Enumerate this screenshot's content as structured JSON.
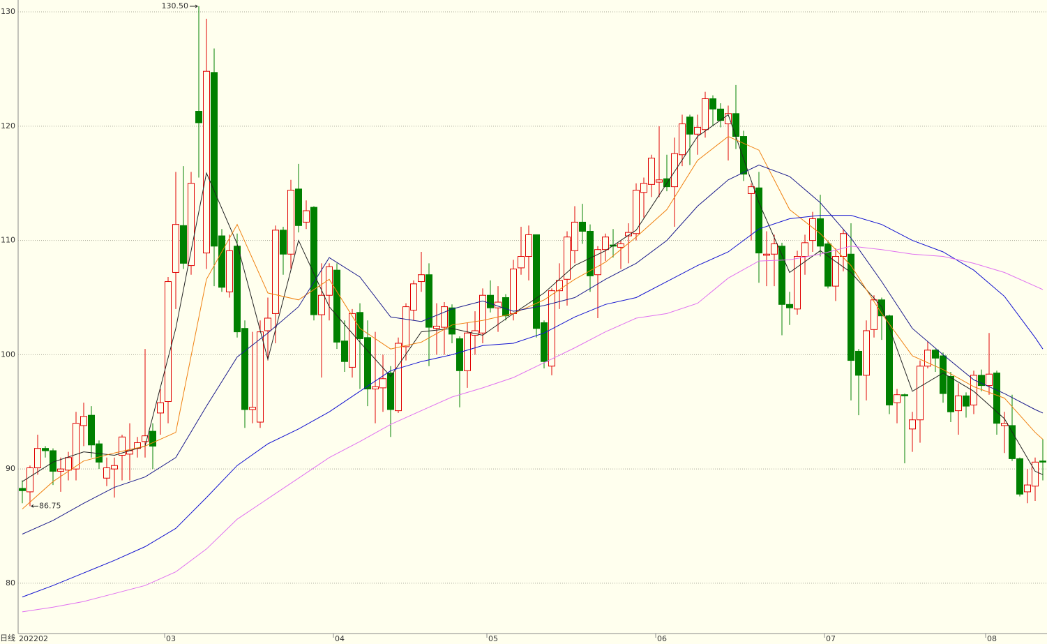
{
  "chart_data": {
    "type": "candlestick",
    "period_label": "日线",
    "categories": [
      "202202",
      null,
      null,
      null,
      null,
      null,
      null,
      null,
      null,
      null,
      null,
      null,
      null,
      null,
      null,
      null,
      null,
      null,
      null,
      "03",
      null,
      null,
      null,
      null,
      null,
      null,
      null,
      null,
      null,
      null,
      null,
      null,
      null,
      null,
      null,
      null,
      null,
      null,
      null,
      null,
      null,
      "04",
      null,
      null,
      null,
      null,
      null,
      null,
      null,
      null,
      null,
      null,
      null,
      null,
      null,
      null,
      null,
      null,
      null,
      null,
      null,
      "05",
      null,
      null,
      null,
      null,
      null,
      null,
      null,
      null,
      null,
      null,
      null,
      null,
      null,
      null,
      null,
      null,
      null,
      null,
      null,
      null,
      null,
      "06",
      null,
      null,
      null,
      null,
      null,
      null,
      null,
      null,
      null,
      null,
      null,
      null,
      null,
      null,
      null,
      null,
      null,
      null,
      null,
      null,
      null,
      "07",
      null,
      null,
      null,
      null,
      null,
      null,
      null,
      null,
      null,
      null,
      null,
      null,
      null,
      null,
      null,
      null,
      null,
      null,
      null,
      null,
      "08",
      null,
      null,
      null,
      null,
      null,
      null,
      null
    ],
    "open": [
      88.3,
      88.0,
      90.1,
      91.8,
      91.6,
      89.8,
      89.9,
      90.0,
      93.8,
      94.7,
      92.2,
      89.2,
      90.0,
      91.2,
      91.3,
      91.8,
      92.4,
      93.3,
      94.9,
      95.9,
      107.2,
      111.3,
      107.8,
      121.3,
      108.9,
      124.7,
      110.4,
      105.5,
      109.5,
      102.3,
      95.2,
      94.1,
      102.1,
      103.6,
      110.9,
      108.8,
      114.5,
      111.6,
      112.9,
      103.5,
      105.2,
      107.4,
      101.2,
      98.9,
      103.7,
      101.5,
      97.0,
      97.1,
      98.4,
      95.1,
      100.7,
      103.9,
      106.4,
      107.0,
      102.3,
      102.4,
      104.1,
      101.4,
      98.6,
      101.7,
      101.9,
      105.2,
      104.1,
      105.0,
      103.6,
      107.6,
      108.6,
      110.5,
      102.8,
      99.0,
      105.6,
      106.6,
      109.1,
      111.6,
      110.8,
      107.0,
      109.2,
      109.6,
      109.4,
      110.4,
      110.6,
      114.2,
      114.9,
      115.1,
      115.4,
      114.7,
      117.5,
      120.8,
      119.3,
      119.7,
      122.4,
      121.5,
      120.2,
      121.1,
      119.1,
      114.1,
      114.6,
      108.7,
      108.8,
      109.5,
      104.4,
      104.0,
      108.6,
      110.0,
      111.9,
      109.7,
      106.0,
      108.6,
      108.8,
      100.3,
      98.2,
      102.2,
      104.8,
      103.4,
      95.8,
      96.5,
      93.5,
      94.3,
      99.0,
      100.4,
      99.9,
      98.1,
      95.1,
      96.4,
      95.6,
      98.2,
      97.3,
      98.4,
      93.8,
      93.8,
      90.9,
      88.0,
      88.5,
      90.7
    ],
    "high": [
      89.0,
      90.3,
      93.0,
      92.0,
      91.8,
      91.0,
      91.5,
      95.0,
      95.8,
      95.5,
      92.5,
      91.0,
      91.0,
      93.0,
      94.0,
      92.8,
      100.5,
      94.0,
      97.0,
      106.8,
      116.0,
      116.5,
      116.0,
      130.5,
      129.4,
      126.8,
      111.0,
      110.5,
      110.6,
      103.0,
      102.0,
      103.0,
      105.0,
      111.3,
      111.2,
      115.3,
      116.7,
      113.5,
      113.0,
      108.0,
      108.0,
      108.0,
      103.0,
      104.0,
      104.5,
      103.0,
      102.0,
      100.0,
      99.0,
      101.5,
      104.5,
      106.5,
      109.0,
      108.0,
      104.5,
      104.6,
      104.4,
      101.6,
      102.8,
      103.8,
      105.8,
      106.5,
      106.0,
      105.3,
      108.3,
      111.2,
      111.3,
      110.5,
      103.0,
      105.8,
      108.0,
      110.8,
      113.0,
      113.2,
      111.4,
      109.5,
      110.6,
      111.0,
      110.0,
      111.5,
      115.0,
      115.5,
      117.5,
      120.0,
      117.5,
      119.0,
      121.0,
      121.0,
      121.0,
      123.0,
      122.7,
      122.0,
      121.8,
      123.6,
      119.6,
      115.0,
      116.0,
      110.8,
      110.5,
      109.8,
      105.5,
      109.1,
      110.5,
      112.5,
      114.0,
      110.0,
      109.3,
      111.0,
      111.5,
      100.5,
      103.0,
      105.2,
      105.0,
      103.5,
      97.0,
      96.6,
      95.0,
      99.5,
      101.2,
      100.5,
      100.2,
      98.5,
      97.5,
      96.7,
      98.6,
      98.7,
      101.9,
      98.6,
      95.0,
      96.5,
      91.0,
      90.0,
      91.0,
      92.6
    ],
    "low": [
      87.0,
      86.75,
      89.5,
      91.0,
      88.6,
      88.0,
      89.0,
      89.0,
      92.0,
      91.0,
      90.0,
      88.5,
      87.5,
      89.0,
      89.0,
      91.0,
      91.0,
      90.0,
      93.0,
      94.0,
      104.0,
      107.5,
      107.0,
      115.5,
      107.5,
      106.0,
      105.5,
      105.0,
      101.5,
      93.6,
      94.0,
      93.6,
      99.5,
      101.0,
      107.0,
      107.5,
      110.7,
      111.0,
      103.0,
      98.0,
      103.0,
      100.5,
      98.5,
      98.0,
      97.0,
      95.5,
      94.0,
      95.0,
      92.8,
      94.9,
      99.5,
      103.0,
      105.5,
      99.0,
      100.0,
      100.0,
      101.0,
      95.4,
      97.1,
      100.0,
      101.0,
      103.7,
      102.0,
      103.0,
      103.0,
      107.0,
      106.5,
      101.5,
      98.8,
      98.2,
      104.0,
      104.3,
      108.0,
      109.7,
      105.5,
      103.2,
      108.2,
      108.5,
      107.5,
      108.0,
      110.0,
      112.0,
      113.8,
      113.8,
      114.3,
      111.2,
      116.5,
      116.6,
      117.5,
      119.0,
      120.0,
      119.9,
      117.0,
      118.0,
      115.2,
      110.0,
      106.3,
      106.0,
      106.0,
      101.7,
      102.6,
      103.5,
      107.0,
      109.0,
      108.6,
      105.8,
      104.7,
      107.3,
      96.0,
      94.7,
      96.0,
      101.5,
      101.3,
      94.8,
      94.0,
      90.5,
      91.5,
      92.3,
      98.8,
      98.5,
      95.8,
      94.1,
      93.0,
      94.5,
      94.8,
      96.8,
      96.5,
      93.0,
      91.4,
      90.7,
      87.6,
      87.0,
      87.2,
      89.0
    ],
    "close": [
      88.1,
      90.1,
      91.8,
      91.6,
      89.8,
      90.0,
      91.0,
      94.0,
      94.6,
      92.1,
      90.6,
      90.1,
      90.3,
      92.8,
      91.6,
      92.3,
      92.9,
      92.0,
      95.8,
      106.4,
      111.4,
      108.0,
      115.0,
      120.3,
      124.8,
      109.5,
      105.9,
      109.1,
      102.0,
      95.2,
      95.4,
      102.0,
      103.2,
      110.9,
      108.8,
      114.4,
      111.3,
      112.6,
      103.5,
      105.2,
      107.7,
      101.1,
      99.4,
      103.6,
      101.4,
      97.0,
      97.2,
      97.9,
      95.2,
      101.0,
      104.2,
      106.2,
      107.0,
      102.4,
      102.5,
      104.2,
      101.8,
      98.6,
      101.9,
      102.1,
      105.2,
      104.1,
      104.6,
      103.4,
      107.5,
      108.6,
      110.5,
      102.3,
      99.4,
      105.6,
      106.5,
      110.3,
      111.6,
      110.8,
      106.9,
      109.2,
      110.3,
      109.5,
      109.7,
      110.7,
      114.4,
      115.0,
      117.2,
      115.3,
      114.7,
      117.6,
      120.2,
      119.3,
      119.9,
      122.4,
      121.5,
      120.5,
      121.1,
      119.1,
      115.8,
      114.7,
      108.9,
      108.8,
      109.7,
      104.4,
      104.1,
      108.6,
      109.8,
      111.9,
      109.5,
      106.0,
      108.6,
      110.6,
      99.5,
      98.2,
      102.1,
      104.8,
      103.4,
      95.6,
      96.5,
      96.4,
      94.3,
      99.0,
      100.4,
      99.7,
      96.6,
      95.0,
      96.4,
      95.5,
      98.2,
      97.3,
      98.3,
      94.0,
      94.0,
      90.9,
      87.8,
      88.6,
      90.6,
      90.6
    ],
    "up_color": "#e00000",
    "down_color": "#008000",
    "series": [
      {
        "type": "line",
        "color": "#222222",
        "x": [
          0,
          4,
          8,
          12,
          16,
          20,
          24,
          28,
          32,
          36,
          40,
          44,
          48,
          52,
          56,
          60,
          64,
          68,
          72,
          76,
          80,
          84,
          88,
          92,
          96,
          100,
          104,
          108,
          112,
          116,
          120,
          124,
          128,
          132,
          133
        ],
        "values": [
          88.9,
          90.6,
          91.5,
          91.2,
          92.0,
          102.3,
          115.9,
          109.7,
          99.6,
          110.0,
          104.2,
          101.1,
          98.1,
          102.0,
          102.3,
          101.7,
          103.6,
          105.4,
          107.8,
          109.1,
          110.9,
          115.0,
          119.1,
          121.0,
          113.3,
          107.2,
          109.1,
          107.2,
          104.2,
          96.8,
          98.4,
          96.8,
          94.4,
          89.8,
          89.5
        ]
      },
      {
        "type": "line",
        "color": "#f08010",
        "x": [
          0,
          4,
          8,
          12,
          16,
          20,
          24,
          28,
          32,
          36,
          40,
          44,
          48,
          52,
          56,
          60,
          64,
          68,
          72,
          76,
          80,
          84,
          88,
          92,
          96,
          100,
          104,
          108,
          112,
          116,
          120,
          124,
          128,
          132,
          133
        ],
        "values": [
          86.5,
          88.9,
          90.7,
          91.4,
          92.0,
          93.2,
          106.6,
          111.4,
          105.4,
          104.8,
          106.6,
          102.3,
          100.5,
          101.1,
          102.6,
          103.0,
          103.6,
          104.8,
          106.6,
          108.1,
          110.3,
          112.7,
          117.0,
          119.1,
          117.9,
          112.7,
          110.6,
          107.8,
          103.6,
          99.9,
          98.7,
          97.2,
          96.2,
          93.2,
          92.6
        ]
      },
      {
        "type": "line",
        "color": "#1a1a8c",
        "x": [
          0,
          4,
          8,
          12,
          16,
          20,
          24,
          28,
          32,
          36,
          40,
          44,
          48,
          52,
          56,
          60,
          64,
          68,
          72,
          76,
          80,
          84,
          88,
          92,
          96,
          100,
          104,
          108,
          112,
          116,
          120,
          124,
          128,
          132,
          133
        ],
        "values": [
          84.3,
          85.5,
          87.0,
          88.4,
          89.3,
          91.0,
          95.5,
          99.8,
          101.9,
          104.2,
          108.5,
          106.8,
          103.3,
          102.9,
          104.0,
          104.7,
          103.8,
          104.3,
          105.0,
          106.6,
          108.0,
          110.0,
          113.0,
          115.3,
          116.6,
          115.6,
          113.3,
          110.2,
          106.4,
          102.3,
          100.0,
          97.8,
          96.6,
          95.2,
          94.9
        ]
      },
      {
        "type": "line",
        "color": "#1010d0",
        "x": [
          0,
          4,
          8,
          12,
          16,
          20,
          24,
          28,
          32,
          36,
          40,
          44,
          48,
          52,
          56,
          60,
          64,
          68,
          72,
          76,
          80,
          84,
          88,
          92,
          96,
          100,
          104,
          108,
          112,
          116,
          120,
          124,
          128,
          132,
          133
        ],
        "values": [
          78.8,
          79.8,
          80.9,
          82.0,
          83.2,
          84.8,
          87.5,
          90.3,
          92.2,
          93.5,
          95.0,
          96.8,
          98.6,
          99.4,
          100.0,
          100.8,
          101.0,
          101.9,
          103.3,
          104.4,
          105.0,
          106.4,
          107.8,
          109.0,
          111.0,
          111.9,
          112.2,
          112.2,
          111.4,
          110.0,
          109.0,
          107.4,
          105.1,
          101.5,
          100.5
        ]
      },
      {
        "type": "line",
        "color": "#e070f0",
        "x": [
          0,
          4,
          8,
          12,
          16,
          20,
          24,
          28,
          32,
          36,
          40,
          44,
          48,
          52,
          56,
          60,
          64,
          68,
          72,
          76,
          80,
          84,
          88,
          92,
          96,
          100,
          104,
          108,
          112,
          116,
          120,
          124,
          128,
          132,
          133
        ],
        "values": [
          77.5,
          77.9,
          78.4,
          79.1,
          79.8,
          81.0,
          83.0,
          85.6,
          87.4,
          89.2,
          91.0,
          92.4,
          93.9,
          95.1,
          96.3,
          97.1,
          98.0,
          99.3,
          100.6,
          102.0,
          103.2,
          103.6,
          104.5,
          106.7,
          108.2,
          108.3,
          108.8,
          109.5,
          109.2,
          108.8,
          108.6,
          108.0,
          107.2,
          106.0,
          105.7
        ]
      }
    ],
    "annotations": [
      {
        "value": 130.5,
        "label": "130.50"
      },
      {
        "value": 86.75,
        "label": "86.75"
      }
    ],
    "ylim": [
      75.6,
      131.04
    ],
    "yticks": [
      80,
      90,
      100,
      110,
      120,
      130
    ],
    "grid": true
  }
}
